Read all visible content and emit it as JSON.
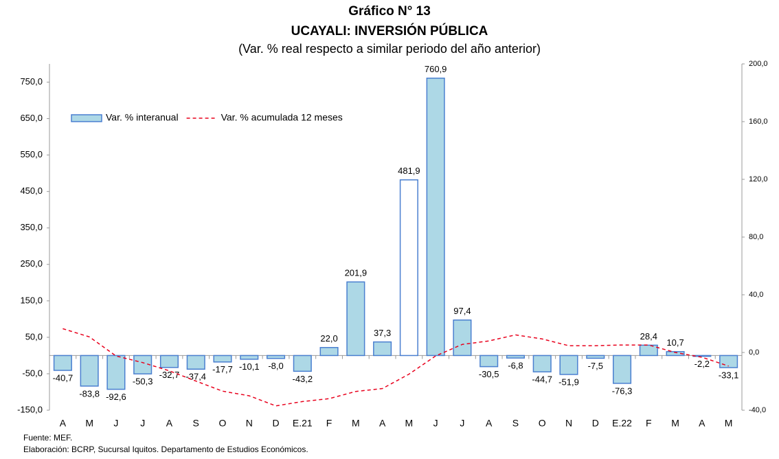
{
  "chart_data": {
    "type": "bar",
    "title": "Gráfico N° 13",
    "subtitle": "UCAYALI: INVERSIÓN PÚBLICA",
    "subtitle2": "(Var. % real respecto a similar periodo del año anterior)",
    "categories": [
      "A",
      "M",
      "J",
      "J",
      "A",
      "S",
      "O",
      "N",
      "D",
      "E.21",
      "F",
      "M",
      "A",
      "M",
      "J",
      "J",
      "A",
      "S",
      "O",
      "N",
      "D",
      "E.22",
      "F",
      "M",
      "A",
      "M"
    ],
    "series": [
      {
        "name": "Var. % interanual",
        "type": "bar",
        "color": "#add8e6",
        "edge": "#4a7fd0",
        "bar_fill": [
          "#add8e6",
          "#add8e6",
          "#add8e6",
          "#add8e6",
          "#add8e6",
          "#add8e6",
          "#add8e6",
          "#add8e6",
          "#add8e6",
          "#add8e6",
          "#add8e6",
          "#add8e6",
          "#add8e6",
          "#ffffff",
          "#add8e6",
          "#add8e6",
          "#add8e6",
          "#add8e6",
          "#add8e6",
          "#add8e6",
          "#add8e6",
          "#add8e6",
          "#add8e6",
          "#add8e6",
          "#add8e6",
          "#add8e6"
        ],
        "values": [
          -40.7,
          -83.8,
          -92.6,
          -50.3,
          -32.7,
          -37.4,
          -17.7,
          -10.1,
          -8.0,
          -43.2,
          22.0,
          201.9,
          37.3,
          481.9,
          760.9,
          97.4,
          -30.5,
          -6.8,
          -44.7,
          -51.9,
          -7.5,
          -76.3,
          28.4,
          10.7,
          -2.2,
          -33.1
        ],
        "value_labels": [
          "-40,7",
          "-83,8",
          "-92,6",
          "-50,3",
          "-32,7",
          "-37,4",
          "-17,7",
          "-10,1",
          "-8,0",
          "-43,2",
          "22,0",
          "201,9",
          "37,3",
          "481,9",
          "760,9",
          "97,4",
          "-30,5",
          "-6,8",
          "-44,7",
          "-51,9",
          "-7,5",
          "-76,3",
          "28,4",
          "10,7",
          "-2,2",
          "-33,1"
        ]
      },
      {
        "name": "Var. % acumulada 12 meses",
        "type": "line",
        "axis": "y2",
        "color": "#e8001c",
        "dashed": true,
        "values": [
          16.5,
          10.8,
          -2.4,
          -7,
          -12.7,
          -19.8,
          -26.8,
          -30,
          -37,
          -34,
          -32,
          -27,
          -25,
          -15,
          -2.4,
          5.6,
          8,
          12.2,
          9.4,
          4.7,
          4.7,
          5.2,
          5.2,
          0,
          -3.3,
          -9.4
        ]
      }
    ],
    "ylim": [
      -150,
      800
    ],
    "yticks": [
      {
        "value": -150,
        "label": "-150,0"
      },
      {
        "value": -50,
        "label": "-50,0"
      },
      {
        "value": 50,
        "label": "50,0"
      },
      {
        "value": 150,
        "label": "150,0"
      },
      {
        "value": 250,
        "label": "250,0"
      },
      {
        "value": 350,
        "label": "350,0"
      },
      {
        "value": 450,
        "label": "450,0"
      },
      {
        "value": 550,
        "label": "550,0"
      },
      {
        "value": 650,
        "label": "650,0"
      },
      {
        "value": 750,
        "label": "750,0"
      }
    ],
    "y2lim": [
      -40,
      200
    ],
    "y2ticks": [
      {
        "value": -40,
        "label": "-40,0"
      },
      {
        "value": 0,
        "label": "0,0"
      },
      {
        "value": 40,
        "label": "40,0"
      },
      {
        "value": 80,
        "label": "80,0"
      },
      {
        "value": 120,
        "label": "120,0"
      },
      {
        "value": 160,
        "label": "160,0"
      },
      {
        "value": 200,
        "label": "200,0"
      }
    ],
    "grid": false,
    "legend": "top-left",
    "footnotes": [
      "Fuente: MEF.",
      "Elaboración: BCRP, Sucursal Iquitos. Departamento de Estudios Económicos."
    ]
  }
}
